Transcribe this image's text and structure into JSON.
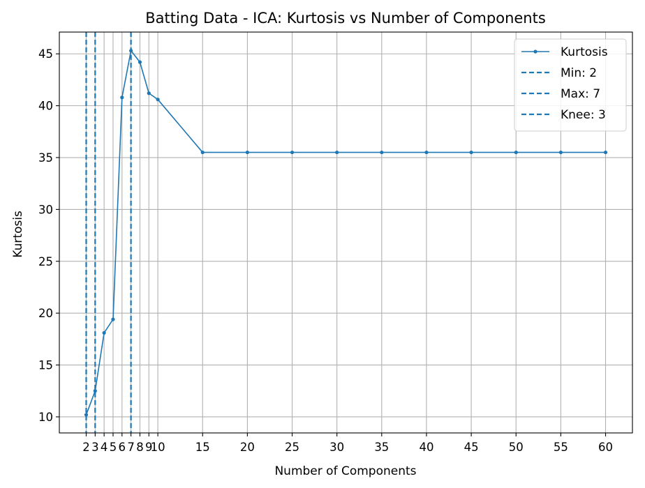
{
  "chart_data": {
    "type": "line",
    "title": "Batting Data - ICA: Kurtosis vs Number of Components",
    "xlabel": "Number of Components",
    "ylabel": "Kurtosis",
    "x": [
      2,
      3,
      4,
      5,
      6,
      7,
      8,
      9,
      10,
      15,
      20,
      25,
      30,
      35,
      40,
      45,
      50,
      55,
      60
    ],
    "series": [
      {
        "name": "Kurtosis",
        "color": "#1f77b4",
        "values": [
          10.2,
          12.5,
          18.1,
          19.4,
          40.8,
          45.3,
          44.2,
          41.2,
          40.6,
          35.5,
          35.5,
          35.5,
          35.5,
          35.5,
          35.5,
          35.5,
          35.5,
          35.5,
          35.5
        ]
      }
    ],
    "vlines": [
      {
        "name": "Min: 2",
        "x": 2,
        "color": "#1f77b4",
        "style": "dashed"
      },
      {
        "name": "Max: 7",
        "x": 7,
        "color": "#1f77b4",
        "style": "dashed"
      },
      {
        "name": "Knee: 3",
        "x": 3,
        "color": "#1f77b4",
        "style": "dashed"
      }
    ],
    "xticks": [
      2,
      3,
      4,
      5,
      6,
      7,
      8,
      9,
      10,
      15,
      20,
      25,
      30,
      35,
      40,
      45,
      50,
      55,
      60
    ],
    "yticks": [
      10,
      15,
      20,
      25,
      30,
      35,
      40,
      45
    ],
    "xlim": [
      -1,
      63
    ],
    "ylim": [
      8.45,
      47.1
    ],
    "grid": true,
    "legend_position": "top-right"
  }
}
